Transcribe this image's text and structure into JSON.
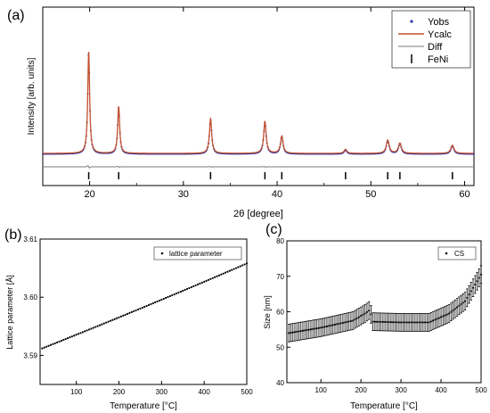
{
  "chart_data": [
    {
      "panel_label": "(a)",
      "type": "line",
      "title": "",
      "xlabel": "2θ [degree]",
      "ylabel": "Intensity [arb. units]",
      "xlim": [
        15,
        61
      ],
      "xticks": [
        20,
        30,
        40,
        50,
        60
      ],
      "yticks_shown": false,
      "legend": "top-right",
      "series": [
        {
          "name": "Yobs",
          "style": "dots",
          "color": "#2e36a8"
        },
        {
          "name": "Ycalc",
          "style": "line",
          "color": "#c2502f"
        },
        {
          "name": "Diff",
          "style": "line",
          "color": "#7a7a7a"
        },
        {
          "name": "FeNi",
          "style": "bragg-ticks",
          "color": "#000000"
        }
      ],
      "baseline": 0.08,
      "peaks": [
        {
          "x": 19.9,
          "height": 1.0
        },
        {
          "x": 23.1,
          "height": 0.46
        },
        {
          "x": 32.9,
          "height": 0.34
        },
        {
          "x": 38.7,
          "height": 0.31
        },
        {
          "x": 40.5,
          "height": 0.17
        },
        {
          "x": 47.3,
          "height": 0.04
        },
        {
          "x": 51.8,
          "height": 0.13
        },
        {
          "x": 53.1,
          "height": 0.1
        },
        {
          "x": 58.7,
          "height": 0.08
        }
      ],
      "bragg_positions": [
        19.9,
        23.1,
        32.9,
        38.7,
        40.5,
        47.3,
        51.8,
        53.1,
        58.7
      ]
    },
    {
      "panel_label": "(b)",
      "type": "scatter",
      "title": "",
      "xlabel": "Temperature [°C]",
      "ylabel": "Lattice parameter [Å]",
      "xlim": [
        15,
        500
      ],
      "ylim": [
        3.585,
        3.61
      ],
      "xticks": [
        100,
        200,
        300,
        400,
        500
      ],
      "yticks": [
        3.59,
        3.6,
        3.61
      ],
      "legend": "top-right",
      "series": [
        {
          "name": "lattice parameter",
          "x_start": 20,
          "x_end": 500,
          "x_step": 5,
          "y_start": 3.5912,
          "y_end": 3.6058,
          "curvature": 0.0006
        }
      ]
    },
    {
      "panel_label": "(c)",
      "type": "scatter",
      "title": "",
      "xlabel": "Temperature [°C]",
      "ylabel": "Size [nm]",
      "xlim": [
        15,
        500
      ],
      "ylim": [
        40,
        80
      ],
      "xticks": [
        100,
        200,
        300,
        400,
        500
      ],
      "yticks": [
        40,
        50,
        60,
        70,
        80
      ],
      "legend": "top-right",
      "series": [
        {
          "name": "CS",
          "error": 2.5,
          "x_step": 5,
          "profile": [
            [
              20,
              54.0
            ],
            [
              100,
              55.5
            ],
            [
              180,
              57.5
            ],
            [
              210,
              59.5
            ],
            [
              222,
              60.5
            ],
            [
              230,
              57.2
            ],
            [
              300,
              57.0
            ],
            [
              370,
              57.0
            ],
            [
              420,
              59.5
            ],
            [
              460,
              63.0
            ],
            [
              500,
              70.5
            ]
          ]
        }
      ]
    }
  ]
}
